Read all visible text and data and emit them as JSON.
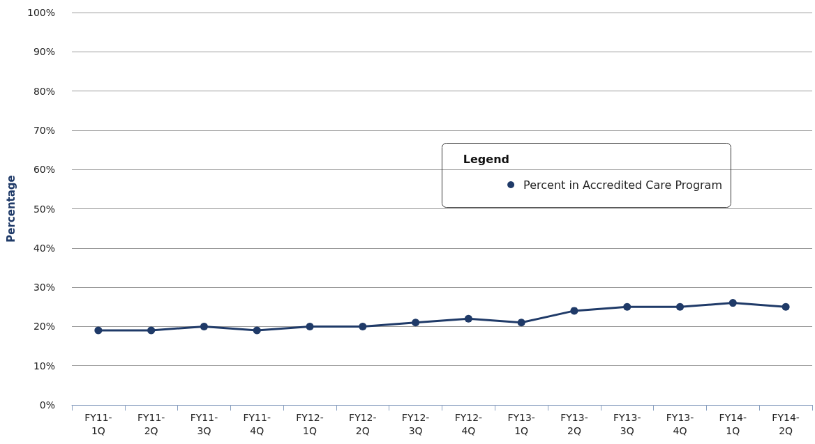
{
  "chart_data": {
    "type": "line",
    "ylabel": "Percentage",
    "legend_title": "Legend",
    "categories": [
      "FY11-1Q",
      "FY11-2Q",
      "FY11-3Q",
      "FY11-4Q",
      "FY12-1Q",
      "FY12-2Q",
      "FY12-3Q",
      "FY12-4Q",
      "FY13-1Q",
      "FY13-2Q",
      "FY13-3Q",
      "FY13-4Q",
      "FY14-1Q",
      "FY14-2Q"
    ],
    "series": [
      {
        "name": "Percent in Accredited Care Program",
        "color": "#1f3a68",
        "values": [
          19,
          19,
          20,
          19,
          20,
          20,
          21,
          22,
          21,
          24,
          25,
          25,
          26,
          25
        ]
      }
    ],
    "ylim": [
      0,
      100
    ],
    "yticks": [
      {
        "value": 0,
        "label": "0%"
      },
      {
        "value": 10,
        "label": "10%"
      },
      {
        "value": 20,
        "label": "20%"
      },
      {
        "value": 30,
        "label": "30%"
      },
      {
        "value": 40,
        "label": "40%"
      },
      {
        "value": 50,
        "label": "50%"
      },
      {
        "value": 60,
        "label": "60%"
      },
      {
        "value": 70,
        "label": "70%"
      },
      {
        "value": 80,
        "label": "80%"
      },
      {
        "value": 90,
        "label": "90%"
      },
      {
        "value": 100,
        "label": "100%"
      }
    ],
    "grid": "y",
    "legend": "right",
    "marker": "circle",
    "line_style": "solid"
  }
}
